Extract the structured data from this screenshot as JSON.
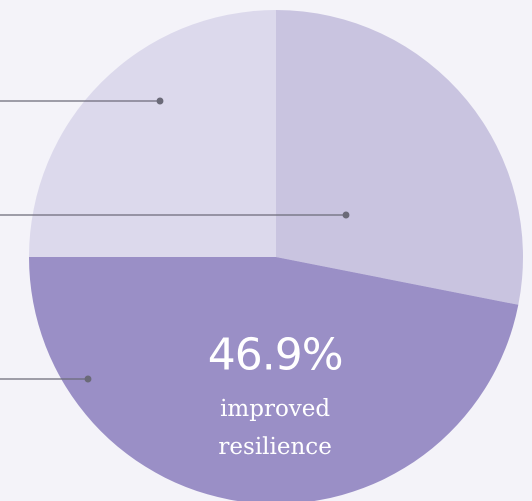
{
  "chart_data": {
    "type": "pie",
    "categories": [
      null,
      "improved resilience",
      null
    ],
    "values": [
      28.1,
      46.9,
      25
    ],
    "value_labels": [
      null,
      "46.9%",
      null
    ],
    "colors": [
      "#c9c4e0",
      "#9a8fc6",
      "#dcd9ec"
    ]
  }
}
